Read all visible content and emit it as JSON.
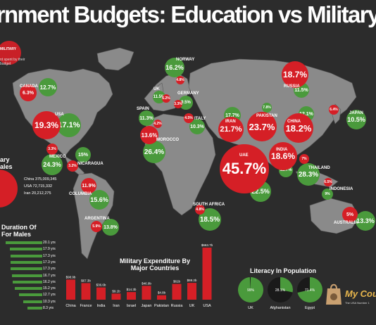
{
  "title": "ernment Budgets: Education vs Military Spend",
  "legend": {
    "tag": "MILITARY",
    "note": "nt spent by their budget"
  },
  "colors": {
    "education": "#4a9a3c",
    "military": "#d51f26",
    "map": "#8a8a8a",
    "background": "#2c2c2c"
  },
  "countries": [
    {
      "name": "CANADA",
      "education": "12.7%",
      "military": "6.3%"
    },
    {
      "name": "USA",
      "education": "17.1%",
      "military": "19.3%"
    },
    {
      "name": "MEXICO",
      "education": "24.3%",
      "military": "3.3%"
    },
    {
      "name": "NICARAGUA",
      "education": "15%",
      "military": "3.2%"
    },
    {
      "name": "COLUMBIA",
      "education": "15.6%",
      "military": "11.9%"
    },
    {
      "name": "ARGENTINA",
      "education": "13.8%",
      "military": "5.9%"
    },
    {
      "name": "UK",
      "education": "11.5%",
      "military": "6.2%"
    },
    {
      "name": "NORWAY",
      "education": "16.2%",
      "military": "4.8%"
    },
    {
      "name": "GERMANY",
      "education": "9.5%",
      "military": "3.3%"
    },
    {
      "name": "SPAIN",
      "education": "11.3%",
      "military": "4.2%"
    },
    {
      "name": "ITALY",
      "education": "10.3%",
      "military": "4.5%"
    },
    {
      "name": "MOROCCO",
      "education": "26.4%",
      "military": "13.6%"
    },
    {
      "name": "IRAN",
      "education": "17.7%",
      "military": "21.7%"
    },
    {
      "name": "PAKISTAN",
      "education": "7.8%",
      "military": "23.7%"
    },
    {
      "name": "UAE",
      "education": "22.5%",
      "military": "45.7%"
    },
    {
      "name": "RUSSIA",
      "education": "11.5%",
      "military": "18.7%"
    },
    {
      "name": "CHINA",
      "education": "12.1%",
      "military": "18.2%"
    },
    {
      "name": "JAPAN",
      "education": "10.5%",
      "military": "6.4%"
    },
    {
      "name": "INDIA",
      "education": "12.7%",
      "military": "18.6%"
    },
    {
      "name": "THAILAND",
      "education": "28.3%",
      "military": "7%"
    },
    {
      "name": "INDONESIA",
      "education": "9%",
      "military": "6.5%"
    },
    {
      "name": "AUSTRALIA",
      "education": "13.3%",
      "military": "5%"
    },
    {
      "name": "SOUTH AFRICA",
      "education": "18.5%",
      "military": "4.8%"
    }
  ],
  "population": {
    "title": "ary\nales",
    "rows": [
      {
        "label": "China",
        "value": "375,009,345"
      },
      {
        "label": "USA",
        "value": "72,715,332"
      },
      {
        "label": "Iran",
        "value": "20,212,275"
      }
    ]
  },
  "duration": {
    "title": "Duration Of\nFor Males",
    "values": [
      "20.1 yrs",
      "17.9 yrs",
      "17.3 yrs",
      "17.3 yrs",
      "17.3 yrs",
      "16.7 yrs",
      "16.2 yrs",
      "15.2 yrs",
      "12.7 yrs",
      "10.3 yrs",
      "8.3 yrs"
    ],
    "numbers": [
      20.1,
      17.9,
      17.3,
      17.3,
      17.3,
      16.7,
      16.2,
      15.2,
      12.7,
      10.3,
      8.3
    ]
  },
  "chart_data": [
    {
      "type": "bar",
      "title": "Military Expenditure By Major Countries",
      "categories": [
        "China",
        "France",
        "India",
        "Iran",
        "Israel",
        "Japan",
        "Pakistan",
        "Russia",
        "UK",
        "USA"
      ],
      "value_labels": [
        "$98.9b",
        "$67.3b",
        "$36.6b",
        "$9.1b",
        "$14.3b",
        "$46.9b",
        "$4.8b",
        "$61b",
        "$69.2b",
        "$663.7b"
      ],
      "values": [
        98.9,
        67.3,
        36.6,
        9.1,
        14.3,
        46.9,
        4.8,
        61,
        69.2,
        663.7
      ]
    },
    {
      "type": "pie",
      "title": "Literacy In Population",
      "items": [
        {
          "name": "UK",
          "value": 99,
          "label": "99%"
        },
        {
          "name": "Afghanistan",
          "value": 28.1,
          "label": "28.1%"
        },
        {
          "name": "Egypt",
          "value": 71.4,
          "label": "71.4%"
        }
      ]
    }
  ],
  "brand": {
    "name": "My Cou",
    "tagline": "The USA Number 1"
  }
}
